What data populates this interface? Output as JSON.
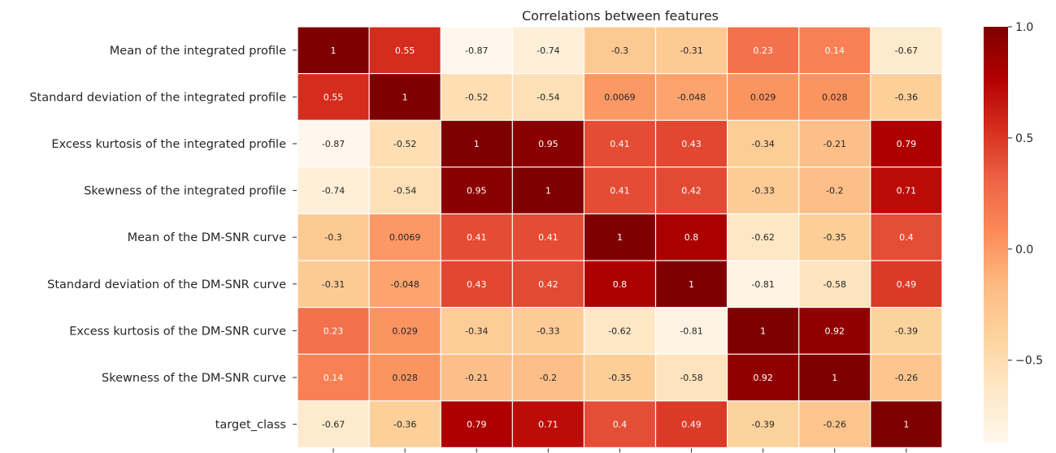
{
  "chart_data": {
    "type": "heatmap",
    "title": "Correlations between features",
    "xlabel": "",
    "ylabel": "",
    "row_labels": [
      "Mean of the integrated profile",
      "Standard deviation of the integrated profile",
      "Excess kurtosis of the integrated profile",
      "Skewness of the integrated profile",
      "Mean of the DM-SNR curve",
      "Standard deviation of the DM-SNR curve",
      "Excess kurtosis of the DM-SNR curve",
      "Skewness of the DM-SNR curve",
      "target_class"
    ],
    "column_labels_visible": false,
    "values": [
      [
        1,
        0.55,
        -0.87,
        -0.74,
        -0.3,
        -0.31,
        0.23,
        0.14,
        -0.67
      ],
      [
        0.55,
        1,
        -0.52,
        -0.54,
        0.0069,
        -0.048,
        0.029,
        0.028,
        -0.36
      ],
      [
        -0.87,
        -0.52,
        1,
        0.95,
        0.41,
        0.43,
        -0.34,
        -0.21,
        0.79
      ],
      [
        -0.74,
        -0.54,
        0.95,
        1,
        0.41,
        0.42,
        -0.33,
        -0.2,
        0.71
      ],
      [
        -0.3,
        0.0069,
        0.41,
        0.41,
        1,
        0.8,
        -0.62,
        -0.35,
        0.4
      ],
      [
        -0.31,
        -0.048,
        0.43,
        0.42,
        0.8,
        1,
        -0.81,
        -0.58,
        0.49
      ],
      [
        0.23,
        0.029,
        -0.34,
        -0.33,
        -0.62,
        -0.81,
        1,
        0.92,
        -0.39
      ],
      [
        0.14,
        0.028,
        -0.21,
        -0.2,
        -0.35,
        -0.58,
        0.92,
        1,
        -0.26
      ],
      [
        -0.67,
        -0.36,
        0.79,
        0.71,
        0.4,
        0.49,
        -0.39,
        -0.26,
        1
      ]
    ],
    "annotations": [
      [
        "1",
        "0.55",
        "-0.87",
        "-0.74",
        "-0.3",
        "-0.31",
        "0.23",
        "0.14",
        "-0.67"
      ],
      [
        "0.55",
        "1",
        "-0.52",
        "-0.54",
        "0.0069",
        "-0.048",
        "0.029",
        "0.028",
        "-0.36"
      ],
      [
        "-0.87",
        "-0.52",
        "1",
        "0.95",
        "0.41",
        "0.43",
        "-0.34",
        "-0.21",
        "0.79"
      ],
      [
        "-0.74",
        "-0.54",
        "0.95",
        "1",
        "0.41",
        "0.42",
        "-0.33",
        "-0.2",
        "0.71"
      ],
      [
        "-0.3",
        "0.0069",
        "0.41",
        "0.41",
        "1",
        "0.8",
        "-0.62",
        "-0.35",
        "0.4"
      ],
      [
        "-0.31",
        "-0.048",
        "0.43",
        "0.42",
        "0.8",
        "1",
        "-0.81",
        "-0.58",
        "0.49"
      ],
      [
        "0.23",
        "0.029",
        "-0.34",
        "-0.33",
        "-0.62",
        "-0.81",
        "1",
        "0.92",
        "-0.39"
      ],
      [
        "0.14",
        "0.028",
        "-0.21",
        "-0.2",
        "-0.35",
        "-0.58",
        "0.92",
        "1",
        "-0.26"
      ],
      [
        "-0.67",
        "-0.36",
        "0.79",
        "0.71",
        "0.4",
        "0.49",
        "-0.39",
        "-0.26",
        "1"
      ]
    ],
    "colormap": {
      "name": "OrRd",
      "vmin": -0.87,
      "vmax": 1.0,
      "stops": [
        "#fff7ec",
        "#fee8c8",
        "#fdd49e",
        "#fdbb84",
        "#fc8d59",
        "#ef6548",
        "#d7301f",
        "#b30000",
        "#7f0000"
      ]
    },
    "colorbar": {
      "ticks": [
        1.0,
        0.5,
        0.0,
        -0.5
      ],
      "tick_labels": [
        "1.0",
        "0.5",
        "0.0",
        "−0.5"
      ]
    },
    "cell_border_color": "#ffffff",
    "grid": false,
    "legend": "colorbar-right"
  }
}
